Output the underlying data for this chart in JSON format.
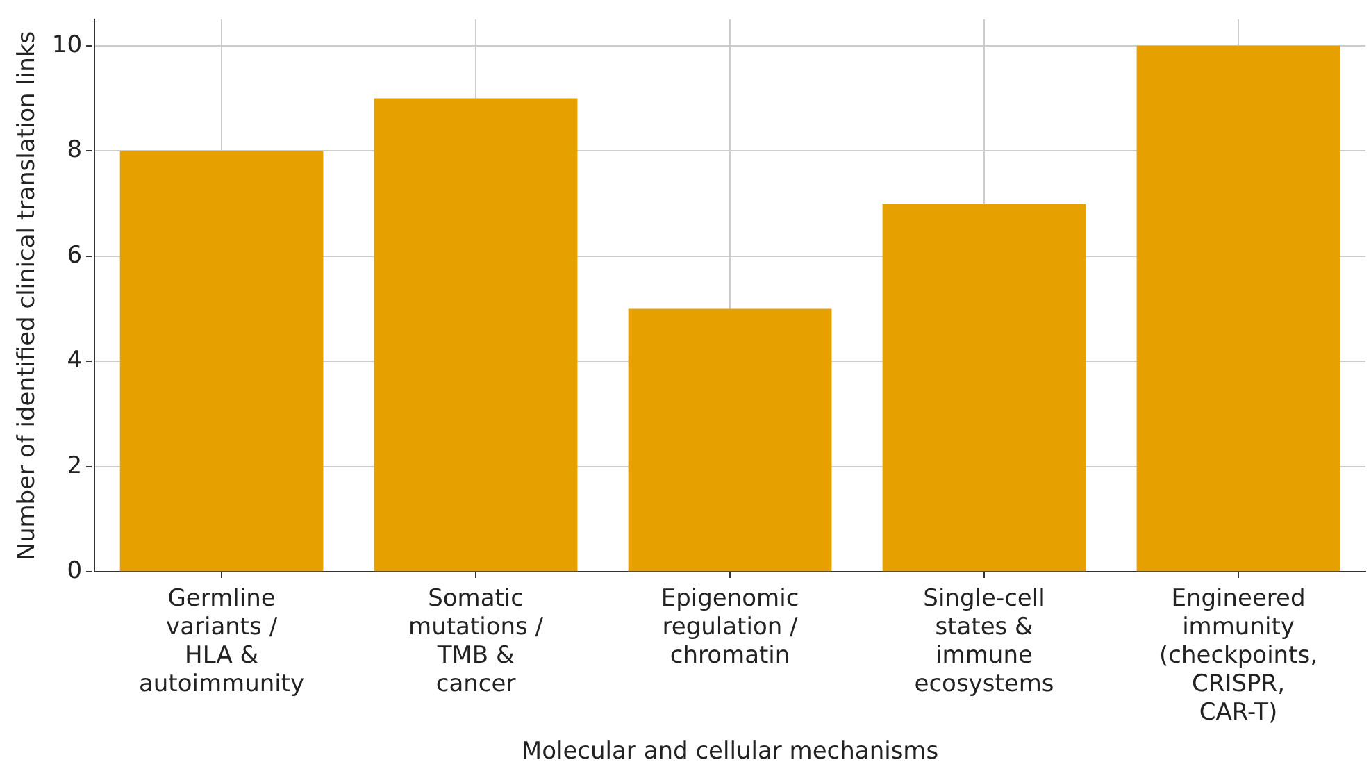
{
  "chart_data": {
    "type": "bar",
    "xlabel": "Molecular and cellular mechanisms",
    "ylabel": "Number of identified clinical translation links",
    "categories": [
      "Germline variants / HLA & autoimmunity",
      "Somatic mutations / TMB & cancer",
      "Epigenomic regulation / chromatin",
      "Single-cell states & immune ecosystems",
      "Engineered immunity (checkpoints, CRISPR, CAR-T)"
    ],
    "values": [
      8,
      9,
      5,
      7,
      10
    ],
    "color": "#e6a000",
    "ylim": [
      0,
      10.5
    ],
    "yticks": [
      0,
      2,
      4,
      6,
      8,
      10
    ],
    "grid": true
  }
}
